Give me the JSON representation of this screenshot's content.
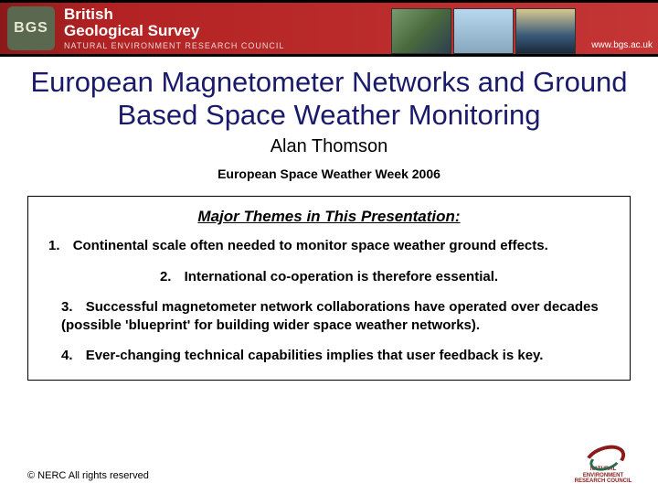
{
  "header": {
    "logo_text": "BGS",
    "org_line1": "British",
    "org_line2": "Geological Survey",
    "org_sub": "NATURAL ENVIRONMENT RESEARCH COUNCIL",
    "url": "www.bgs.ac.uk",
    "bar_color": "#8b1a1a",
    "text_color": "#ffffff"
  },
  "title": {
    "text": "European Magnetometer Networks and Ground Based Space Weather Monitoring",
    "color": "#1a1a6a",
    "fontsize": 31
  },
  "author": "Alan Thomson",
  "event": "European Space Weather Week 2006",
  "themes": {
    "heading": "Major Themes in This Presentation:",
    "items": [
      {
        "num": "1.",
        "text": "Continental scale often needed to monitor space weather ground effects."
      },
      {
        "num": "2.",
        "text": "International co-operation is therefore essential."
      },
      {
        "num": "3.",
        "text": "Successful magnetometer network collaborations have operated over decades (possible 'blueprint' for building wider space weather networks)."
      },
      {
        "num": "4.",
        "text": "Ever-changing technical capabilities implies that user feedback is key."
      }
    ],
    "border_color": "#000000",
    "item_fontsize": 15
  },
  "footer": {
    "copyright": "© NERC All rights reserved",
    "nerc_line1": "NATURAL",
    "nerc_line2": "ENVIRONMENT",
    "nerc_line3": "RESEARCH COUNCIL"
  },
  "colors": {
    "background": "#ffffff",
    "title_text": "#1a1a6a",
    "body_text": "#000000",
    "header_bg": "#8b1a1a",
    "nerc_red": "#8b1a1a",
    "nerc_green": "#2a6a4a"
  }
}
